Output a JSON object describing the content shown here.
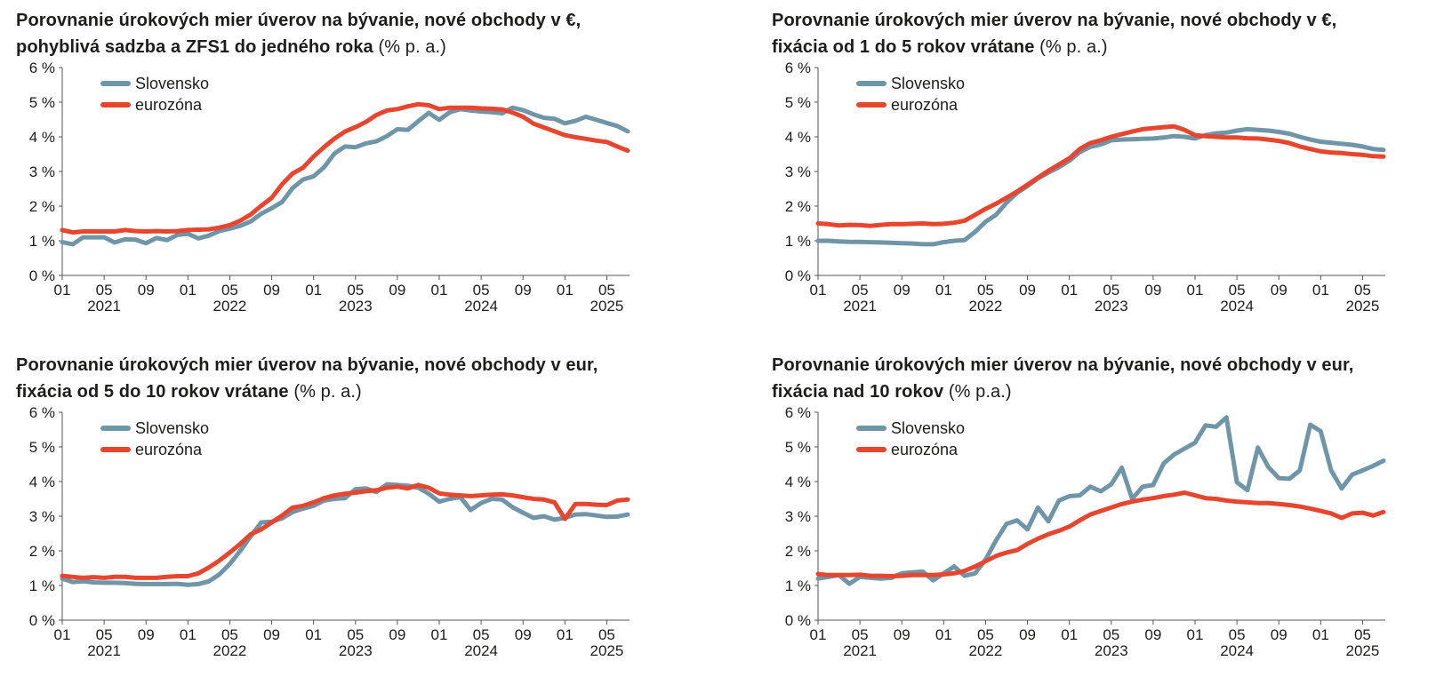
{
  "colors": {
    "slovensko": "#6e95a8",
    "eurozona": "#e8452f",
    "axis": "#555555"
  },
  "chart_data": [
    {
      "type": "line",
      "title": "Porovnanie úrokových mier úverov na bývanie, nové obchody v €, pohyblivá sadzba a ZFS1 do jedného roka",
      "title_lines": [
        "Porovnanie úrokových mier úverov na bývanie, nové obchody v €,",
        "pohyblivá sadzba a ZFS1 do jedného roka"
      ],
      "title_unit": "(% p. a.)",
      "ylim": [
        0,
        6
      ],
      "yticks": [
        "0 %",
        "1 %",
        "2 %",
        "3 %",
        "4 %",
        "5 %",
        "6 %"
      ],
      "xticks": [
        "01",
        "05",
        "09",
        "01",
        "05",
        "09",
        "01",
        "05",
        "09",
        "01",
        "05",
        "09",
        "01",
        "05"
      ],
      "years": [
        "2021",
        "2022",
        "2023",
        "2024",
        "2025"
      ],
      "legend_position": "top-left",
      "series": [
        {
          "name": "Slovensko",
          "values": [
            0.96,
            0.9,
            1.1,
            1.1,
            1.1,
            0.95,
            1.04,
            1.03,
            0.93,
            1.08,
            1.02,
            1.17,
            1.2,
            1.07,
            1.15,
            1.28,
            1.35,
            1.43,
            1.56,
            1.78,
            1.94,
            2.12,
            2.52,
            2.77,
            2.86,
            3.12,
            3.52,
            3.72,
            3.7,
            3.81,
            3.87,
            4.02,
            4.22,
            4.2,
            4.45,
            4.69,
            4.49,
            4.71,
            4.8,
            4.76,
            4.73,
            4.71,
            4.68,
            4.84,
            4.77,
            4.65,
            4.55,
            4.52,
            4.39,
            4.46,
            4.58,
            4.49,
            4.4,
            4.31,
            4.16
          ]
        },
        {
          "name": "eurozóna",
          "values": [
            1.31,
            1.24,
            1.27,
            1.27,
            1.27,
            1.27,
            1.31,
            1.28,
            1.27,
            1.28,
            1.27,
            1.28,
            1.31,
            1.32,
            1.33,
            1.38,
            1.45,
            1.58,
            1.76,
            2.01,
            2.24,
            2.63,
            2.94,
            3.11,
            3.43,
            3.7,
            3.95,
            4.15,
            4.28,
            4.43,
            4.63,
            4.76,
            4.8,
            4.88,
            4.94,
            4.91,
            4.8,
            4.84,
            4.84,
            4.84,
            4.82,
            4.81,
            4.79,
            4.7,
            4.58,
            4.38,
            4.27,
            4.16,
            4.05,
            3.99,
            3.94,
            3.89,
            3.85,
            3.72,
            3.6
          ]
        }
      ]
    },
    {
      "type": "line",
      "title": "Porovnanie úrokových mier úverov na bývanie, nové obchody v €, fixácia od 1 do 5 rokov vrátane",
      "title_lines": [
        "Porovnanie úrokových mier úverov na bývanie, nové obchody v €,",
        "fixácia od 1 do 5 rokov vrátane"
      ],
      "title_unit": "(% p. a.)",
      "ylim": [
        0,
        6
      ],
      "yticks": [
        "0 %",
        "1 %",
        "2 %",
        "3 %",
        "4 %",
        "5 %",
        "6 %"
      ],
      "xticks": [
        "01",
        "05",
        "09",
        "01",
        "05",
        "09",
        "01",
        "05",
        "09",
        "01",
        "05",
        "09",
        "01",
        "05"
      ],
      "years": [
        "2021",
        "2022",
        "2023",
        "2024",
        "2025"
      ],
      "legend_position": "top-left",
      "series": [
        {
          "name": "Slovensko",
          "values": [
            1.0,
            1.0,
            0.98,
            0.97,
            0.97,
            0.96,
            0.95,
            0.94,
            0.93,
            0.92,
            0.9,
            0.9,
            0.96,
            1.0,
            1.02,
            1.26,
            1.55,
            1.75,
            2.1,
            2.38,
            2.58,
            2.8,
            2.97,
            3.12,
            3.31,
            3.56,
            3.71,
            3.78,
            3.9,
            3.92,
            3.93,
            3.94,
            3.95,
            3.98,
            4.02,
            4.0,
            3.95,
            4.05,
            4.1,
            4.12,
            4.18,
            4.22,
            4.2,
            4.18,
            4.14,
            4.09,
            4.0,
            3.92,
            3.86,
            3.83,
            3.8,
            3.77,
            3.72,
            3.65,
            3.62
          ]
        },
        {
          "name": "eurozóna",
          "values": [
            1.5,
            1.48,
            1.44,
            1.46,
            1.45,
            1.43,
            1.46,
            1.48,
            1.48,
            1.49,
            1.5,
            1.48,
            1.49,
            1.52,
            1.58,
            1.75,
            1.92,
            2.07,
            2.24,
            2.42,
            2.62,
            2.82,
            3.02,
            3.2,
            3.38,
            3.65,
            3.82,
            3.9,
            4.0,
            4.08,
            4.15,
            4.22,
            4.25,
            4.28,
            4.3,
            4.2,
            4.05,
            4.02,
            4.0,
            3.98,
            3.98,
            3.96,
            3.95,
            3.92,
            3.88,
            3.82,
            3.72,
            3.65,
            3.58,
            3.55,
            3.53,
            3.5,
            3.48,
            3.44,
            3.43
          ]
        }
      ]
    },
    {
      "type": "line",
      "title": "Porovnanie úrokových mier úverov na bývanie, nové obchody v eur, fixácia od 5 do 10 rokov vrátane",
      "title_lines": [
        "Porovnanie úrokových mier úverov na bývanie, nové obchody v eur,",
        "fixácia od 5 do 10 rokov vrátane"
      ],
      "title_unit": "(% p. a.)",
      "ylim": [
        0,
        6
      ],
      "yticks": [
        "0 %",
        "1 %",
        "2 %",
        "3 %",
        "4 %",
        "5 %",
        "6 %"
      ],
      "xticks": [
        "01",
        "05",
        "09",
        "01",
        "05",
        "09",
        "01",
        "05",
        "09",
        "01",
        "05",
        "09",
        "01",
        "05"
      ],
      "years": [
        "2021",
        "2022",
        "2023",
        "2024",
        "2025"
      ],
      "legend_position": "top-left",
      "series": [
        {
          "name": "Slovensko",
          "values": [
            1.2,
            1.1,
            1.12,
            1.09,
            1.08,
            1.08,
            1.07,
            1.05,
            1.04,
            1.04,
            1.04,
            1.05,
            1.02,
            1.04,
            1.12,
            1.32,
            1.62,
            2.0,
            2.42,
            2.82,
            2.84,
            2.94,
            3.12,
            3.22,
            3.3,
            3.45,
            3.5,
            3.52,
            3.78,
            3.8,
            3.7,
            3.92,
            3.9,
            3.88,
            3.82,
            3.65,
            3.42,
            3.5,
            3.55,
            3.18,
            3.38,
            3.5,
            3.48,
            3.26,
            3.1,
            2.95,
            3.0,
            2.9,
            2.95,
            3.05,
            3.06,
            3.02,
            2.98,
            2.99,
            3.05
          ]
        },
        {
          "name": "eurozóna",
          "values": [
            1.28,
            1.25,
            1.22,
            1.24,
            1.22,
            1.25,
            1.25,
            1.22,
            1.22,
            1.22,
            1.25,
            1.27,
            1.27,
            1.35,
            1.52,
            1.72,
            1.95,
            2.2,
            2.48,
            2.62,
            2.82,
            3.02,
            3.25,
            3.3,
            3.4,
            3.52,
            3.6,
            3.65,
            3.68,
            3.72,
            3.75,
            3.82,
            3.85,
            3.8,
            3.9,
            3.82,
            3.66,
            3.62,
            3.6,
            3.58,
            3.6,
            3.62,
            3.63,
            3.6,
            3.55,
            3.5,
            3.48,
            3.4,
            2.92,
            3.35,
            3.35,
            3.33,
            3.32,
            3.45,
            3.48
          ]
        }
      ]
    },
    {
      "type": "line",
      "title": "Porovnanie úrokových mier úverov na bývanie, nové obchody v eur, fixácia nad 10 rokov",
      "title_lines": [
        "Porovnanie úrokových mier úverov na bývanie, nové obchody v eur,",
        "fixácia nad 10 rokov"
      ],
      "title_unit": "(% p.a.)",
      "ylim": [
        0,
        6
      ],
      "yticks": [
        "0 %",
        "1 %",
        "2 %",
        "3 %",
        "4 %",
        "5 %",
        "6 %"
      ],
      "xticks": [
        "01",
        "05",
        "09",
        "01",
        "05",
        "09",
        "01",
        "05",
        "09",
        "01",
        "05",
        "09",
        "01",
        "05"
      ],
      "years": [
        "2021",
        "2022",
        "2023",
        "2024",
        "2025"
      ],
      "legend_position": "top-left",
      "series": [
        {
          "name": "Slovensko",
          "values": [
            1.2,
            1.25,
            1.3,
            1.05,
            1.25,
            1.22,
            1.2,
            1.22,
            1.35,
            1.38,
            1.4,
            1.15,
            1.35,
            1.55,
            1.28,
            1.35,
            1.75,
            2.3,
            2.78,
            2.88,
            2.62,
            3.25,
            2.85,
            3.45,
            3.58,
            3.6,
            3.85,
            3.72,
            3.92,
            4.4,
            3.5,
            3.85,
            3.9,
            4.52,
            4.78,
            4.95,
            5.12,
            5.62,
            5.58,
            5.85,
            3.98,
            3.75,
            4.98,
            4.42,
            4.1,
            4.08,
            4.32,
            5.64,
            5.45,
            4.32,
            3.8,
            4.2,
            4.32,
            4.45,
            4.6
          ]
        },
        {
          "name": "eurozóna",
          "values": [
            1.33,
            1.3,
            1.3,
            1.3,
            1.31,
            1.28,
            1.28,
            1.27,
            1.28,
            1.3,
            1.3,
            1.3,
            1.32,
            1.35,
            1.42,
            1.55,
            1.7,
            1.85,
            1.95,
            2.02,
            2.2,
            2.35,
            2.48,
            2.58,
            2.7,
            2.88,
            3.05,
            3.15,
            3.25,
            3.35,
            3.42,
            3.48,
            3.52,
            3.58,
            3.62,
            3.68,
            3.6,
            3.52,
            3.5,
            3.45,
            3.42,
            3.4,
            3.38,
            3.38,
            3.35,
            3.32,
            3.28,
            3.22,
            3.15,
            3.08,
            2.95,
            3.08,
            3.1,
            3.02,
            3.12
          ]
        }
      ]
    }
  ]
}
